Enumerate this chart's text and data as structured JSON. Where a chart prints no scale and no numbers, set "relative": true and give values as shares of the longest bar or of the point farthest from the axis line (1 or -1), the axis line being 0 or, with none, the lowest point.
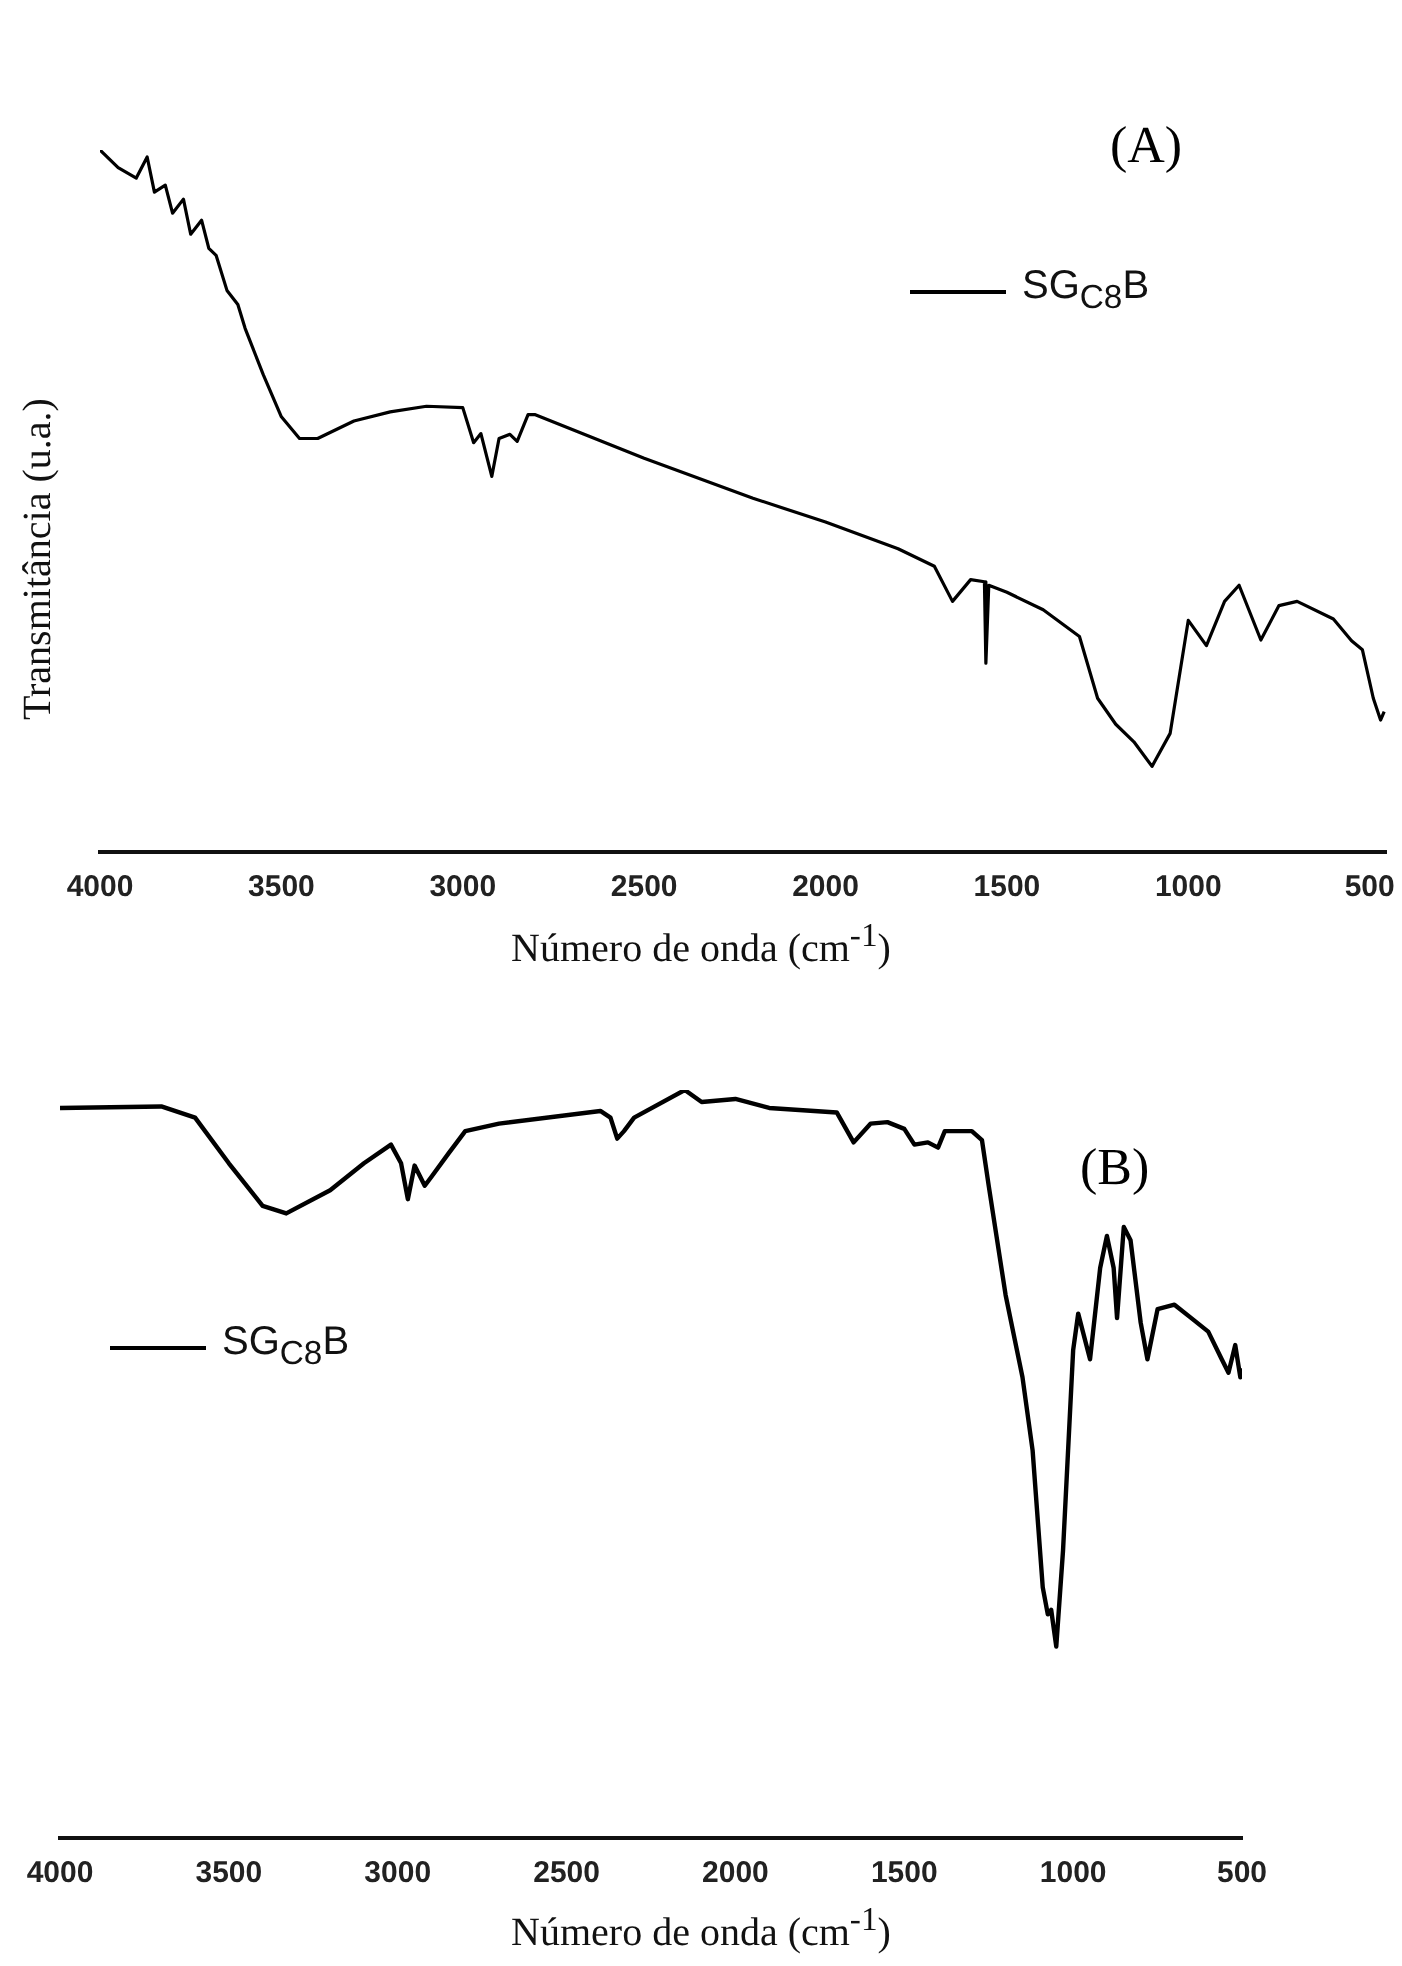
{
  "chart_data": [
    {
      "type": "line",
      "relative": true,
      "xlabel": "Número de onda (cm$^{-1}$)",
      "ylabel": "Transmitância (u.a.)",
      "annotations": [
        "(A)"
      ],
      "legend": "top right",
      "marker": "none",
      "xlim": [
        4000,
        455
      ],
      "xticks": [
        4000,
        3500,
        3000,
        2500,
        2000,
        1500,
        1000,
        500
      ],
      "x": [
        4000,
        3950,
        3900,
        3870,
        3850,
        3820,
        3800,
        3770,
        3750,
        3720,
        3700,
        3680,
        3650,
        3620,
        3600,
        3550,
        3500,
        3450,
        3400,
        3300,
        3200,
        3100,
        3000,
        2970,
        2950,
        2920,
        2900,
        2870,
        2850,
        2820,
        2800,
        2500,
        2200,
        2000,
        1800,
        1700,
        1650,
        1600,
        1562,
        1558,
        1550,
        1500,
        1400,
        1300,
        1250,
        1200,
        1150,
        1100,
        1050,
        1000,
        950,
        900,
        860,
        800,
        750,
        700,
        600,
        550,
        520,
        490,
        470,
        460
      ],
      "series": [
        {
          "name": "SG$_{C8}$B",
          "color": "#000000",
          "values": [
            1.0,
            0.975,
            0.96,
            0.99,
            0.94,
            0.95,
            0.91,
            0.93,
            0.88,
            0.9,
            0.86,
            0.85,
            0.8,
            0.78,
            0.746,
            0.68,
            0.62,
            0.589,
            0.589,
            0.614,
            0.627,
            0.635,
            0.633,
            0.583,
            0.596,
            0.535,
            0.589,
            0.595,
            0.585,
            0.623,
            0.623,
            0.561,
            0.504,
            0.47,
            0.432,
            0.407,
            0.357,
            0.388,
            0.385,
            0.269,
            0.38,
            0.37,
            0.345,
            0.307,
            0.219,
            0.182,
            0.157,
            0.122,
            0.169,
            0.33,
            0.294,
            0.357,
            0.38,
            0.302,
            0.351,
            0.357,
            0.332,
            0.301,
            0.288,
            0.219,
            0.188,
            0.2
          ]
        }
      ]
    },
    {
      "type": "line",
      "relative": true,
      "xlabel": "Número de onda (cm$^{-1}$)",
      "annotations": [
        "(B)"
      ],
      "legend": "top left",
      "marker": "none",
      "xlim": [
        4000,
        500
      ],
      "xticks": [
        4000,
        3500,
        3000,
        2500,
        2000,
        1500,
        1000,
        500
      ],
      "x": [
        4000,
        3700,
        3600,
        3500,
        3400,
        3330,
        3200,
        3100,
        3020,
        2990,
        2970,
        2950,
        2920,
        2900,
        2850,
        2800,
        2700,
        2400,
        2370,
        2350,
        2330,
        2300,
        2150,
        2100,
        2000,
        1900,
        1700,
        1650,
        1600,
        1550,
        1500,
        1470,
        1430,
        1400,
        1380,
        1300,
        1270,
        1250,
        1200,
        1150,
        1120,
        1090,
        1075,
        1065,
        1050,
        1030,
        1000,
        985,
        950,
        920,
        900,
        880,
        870,
        850,
        830,
        800,
        780,
        750,
        700,
        650,
        600,
        560,
        540,
        520,
        505,
        500
      ],
      "series": [
        {
          "name": "SG$_{C8}$B",
          "color": "#000000",
          "values": [
            0.976,
            0.978,
            0.963,
            0.902,
            0.845,
            0.835,
            0.866,
            0.902,
            0.927,
            0.902,
            0.854,
            0.899,
            0.872,
            0.884,
            0.915,
            0.945,
            0.955,
            0.972,
            0.963,
            0.935,
            0.945,
            0.963,
            1.0,
            0.984,
            0.988,
            0.976,
            0.97,
            0.93,
            0.955,
            0.957,
            0.948,
            0.927,
            0.93,
            0.923,
            0.945,
            0.945,
            0.933,
            0.872,
            0.726,
            0.616,
            0.518,
            0.335,
            0.299,
            0.305,
            0.256,
            0.384,
            0.652,
            0.701,
            0.64,
            0.762,
            0.805,
            0.762,
            0.695,
            0.817,
            0.799,
            0.689,
            0.64,
            0.707,
            0.713,
            0.695,
            0.677,
            0.64,
            0.622,
            0.659,
            0.616,
            0.628
          ]
        }
      ]
    }
  ]
}
